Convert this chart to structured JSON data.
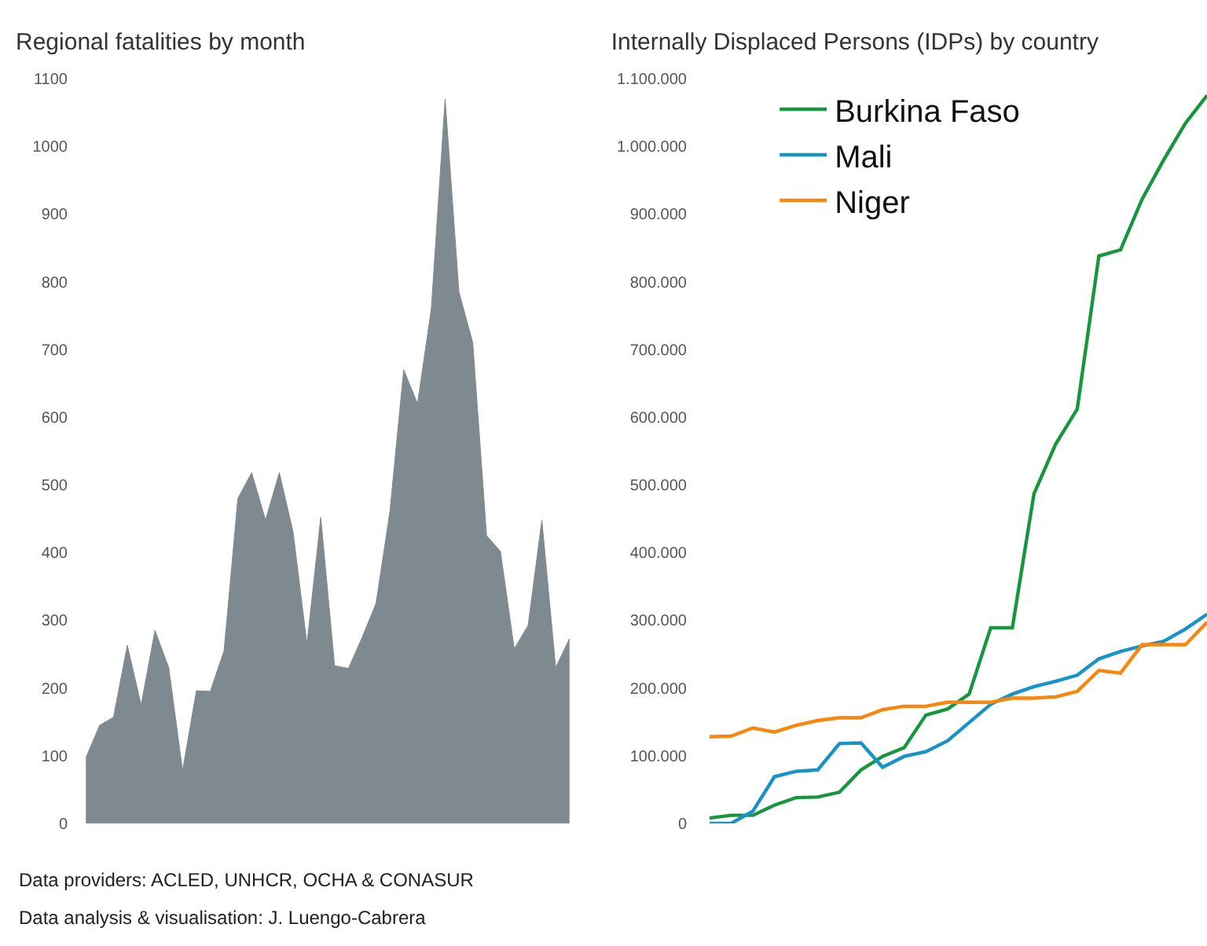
{
  "chart_data": [
    {
      "type": "area",
      "title": "Regional fatalities by month",
      "categories": [
        null,
        null,
        null,
        null,
        null,
        null,
        null,
        null,
        null,
        null,
        null,
        null,
        null,
        null,
        null,
        null,
        null,
        null,
        null,
        null,
        null,
        null,
        null,
        null,
        null,
        null,
        null,
        null,
        null,
        null,
        null,
        null,
        null,
        null,
        null,
        null
      ],
      "values": [
        97,
        145,
        157,
        263,
        175,
        285,
        230,
        78,
        196,
        195,
        255,
        480,
        518,
        448,
        518,
        430,
        265,
        452,
        233,
        229,
        275,
        325,
        460,
        670,
        620,
        760,
        1070,
        785,
        710,
        425,
        402,
        258,
        292,
        448,
        230,
        273
      ],
      "color": "#7f8a90",
      "ylim": [
        0,
        1100
      ],
      "yticks": [
        0,
        100,
        200,
        300,
        400,
        500,
        600,
        700,
        800,
        900,
        1000,
        1100
      ],
      "grid": false,
      "tick_labels": "y",
      "annotations": [
        "Data providers: ACLED, UNHCR, OCHA & CONASUR",
        "Data analysis & visualisation: J. Luengo-Cabrera"
      ]
    },
    {
      "type": "line",
      "title": "Internally Displaced Persons (IDPs) by country",
      "categories": [
        null,
        null,
        null,
        null,
        null,
        null,
        null,
        null,
        null,
        null,
        null,
        null,
        null,
        null,
        null,
        null,
        null,
        null,
        null,
        null,
        null,
        null,
        null,
        null
      ],
      "series": [
        {
          "name": "Burkina Faso",
          "color": "#16963f",
          "values": [
            8000,
            12000,
            12000,
            27000,
            38000,
            39000,
            46000,
            79000,
            99000,
            112000,
            160000,
            169000,
            191000,
            289000,
            289000,
            487000,
            560000,
            612000,
            838000,
            847000,
            922000,
            980000,
            1034000,
            1075000
          ]
        },
        {
          "name": "Mali",
          "color": "#1893c5",
          "values": [
            0,
            0,
            18000,
            69000,
            77000,
            79000,
            118000,
            119000,
            83000,
            99000,
            106000,
            122000,
            149000,
            176000,
            191000,
            202000,
            210000,
            219000,
            243000,
            254000,
            262000,
            269000,
            287000,
            309000
          ]
        },
        {
          "name": "Niger",
          "color": "#f7870f",
          "values": [
            128000,
            129000,
            141000,
            135000,
            145000,
            152000,
            156000,
            156000,
            168000,
            173000,
            173000,
            179000,
            179000,
            179000,
            185000,
            185000,
            187000,
            195000,
            226000,
            222000,
            264000,
            264000,
            264000,
            297000
          ]
        }
      ],
      "ylim": [
        0,
        1100000
      ],
      "yticks": [
        0,
        {
          "value": 100000,
          "label": "100.000"
        },
        {
          "value": 200000,
          "label": "200.000"
        },
        {
          "value": 300000,
          "label": "300.000"
        },
        {
          "value": 400000,
          "label": "400.000"
        },
        {
          "value": 500000,
          "label": "500.000"
        },
        {
          "value": 600000,
          "label": "600.000"
        },
        {
          "value": 700000,
          "label": "700.000"
        },
        {
          "value": 800000,
          "label": "800.000"
        },
        {
          "value": 900000,
          "label": "900.000"
        },
        {
          "value": 1000000,
          "label": "1.000.000"
        },
        {
          "value": 1100000,
          "label": "1.100.000"
        }
      ],
      "grid": false,
      "tick_labels": "y",
      "legend": "top left",
      "line_style": "solid",
      "marker": "none"
    }
  ]
}
